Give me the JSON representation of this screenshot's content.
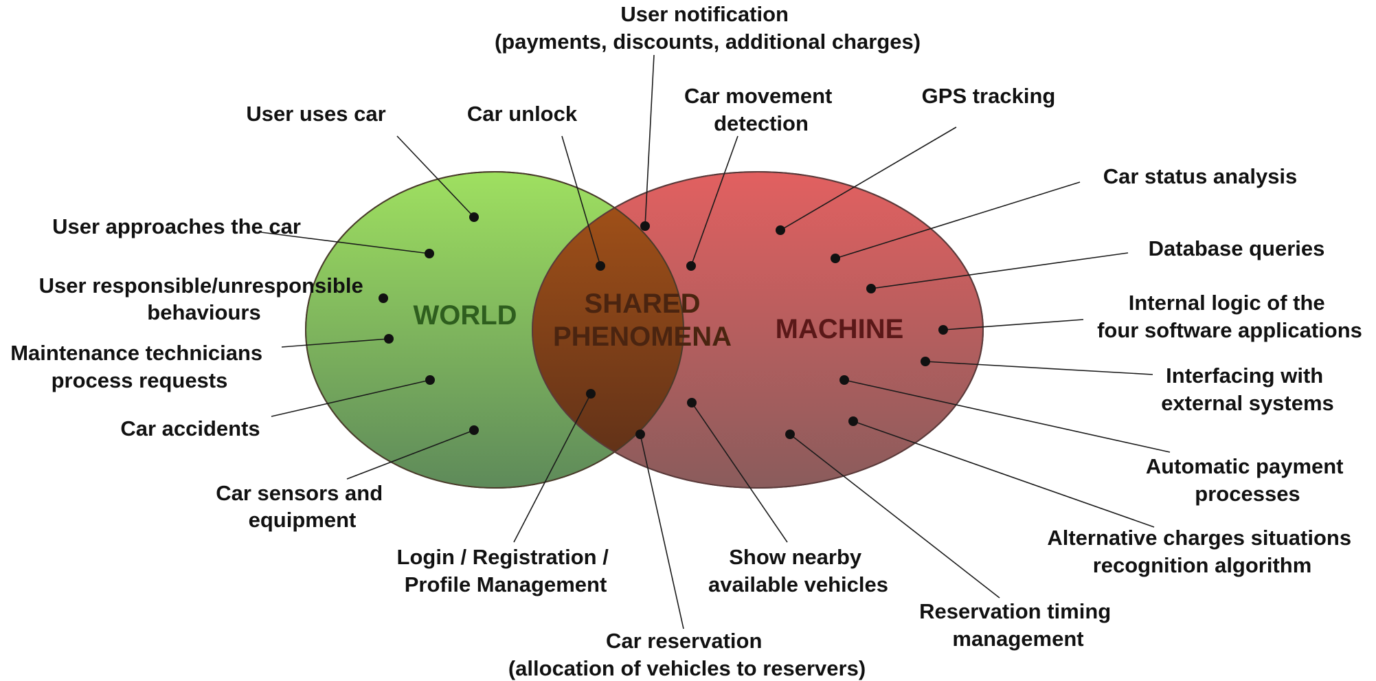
{
  "regions": {
    "world": "WORLD",
    "shared_line1": "SHARED",
    "shared_line2": "PHENOMENA",
    "machine": "MACHINE"
  },
  "colors": {
    "world_top": "#9fe060",
    "world_bottom": "#5e8a5a",
    "machine_top": "#e26060",
    "machine_bottom": "#8a5c5c",
    "shared_top": "#a85418",
    "shared_bottom": "#5a2e18",
    "world_text": "#2e5e1e",
    "shared_text": "#4a2410",
    "machine_text": "#5a1818"
  },
  "labels": {
    "user_notification": [
      "User notification",
      "(payments, discounts, additional charges)"
    ],
    "user_uses_car": [
      "User uses car"
    ],
    "car_unlock": [
      "Car unlock"
    ],
    "car_movement_detection": [
      "Car movement",
      "detection"
    ],
    "gps_tracking": [
      "GPS tracking"
    ],
    "car_status_analysis": [
      "Car status analysis"
    ],
    "user_approaches_car": [
      "User approaches the car"
    ],
    "database_queries": [
      "Database queries"
    ],
    "user_behaviours": [
      "User responsible/unresponsible",
      "behaviours"
    ],
    "internal_logic": [
      "Internal logic of the",
      "four software applications"
    ],
    "maintenance_technicians": [
      "Maintenance technicians",
      "process requests"
    ],
    "interfacing_external": [
      "Interfacing with",
      "external systems"
    ],
    "car_accidents": [
      "Car accidents"
    ],
    "automatic_payment": [
      "Automatic payment",
      "processes"
    ],
    "car_sensors": [
      "Car sensors and",
      "equipment"
    ],
    "alternative_charges": [
      "Alternative charges situations",
      "recognition algorithm"
    ],
    "login_registration": [
      "Login / Registration /",
      "Profile Management"
    ],
    "show_nearby": [
      "Show nearby",
      "available vehicles"
    ],
    "reservation_timing": [
      "Reservation timing",
      "management"
    ],
    "car_reservation": [
      "Car reservation",
      "(allocation of vehicles to reservers)"
    ]
  }
}
